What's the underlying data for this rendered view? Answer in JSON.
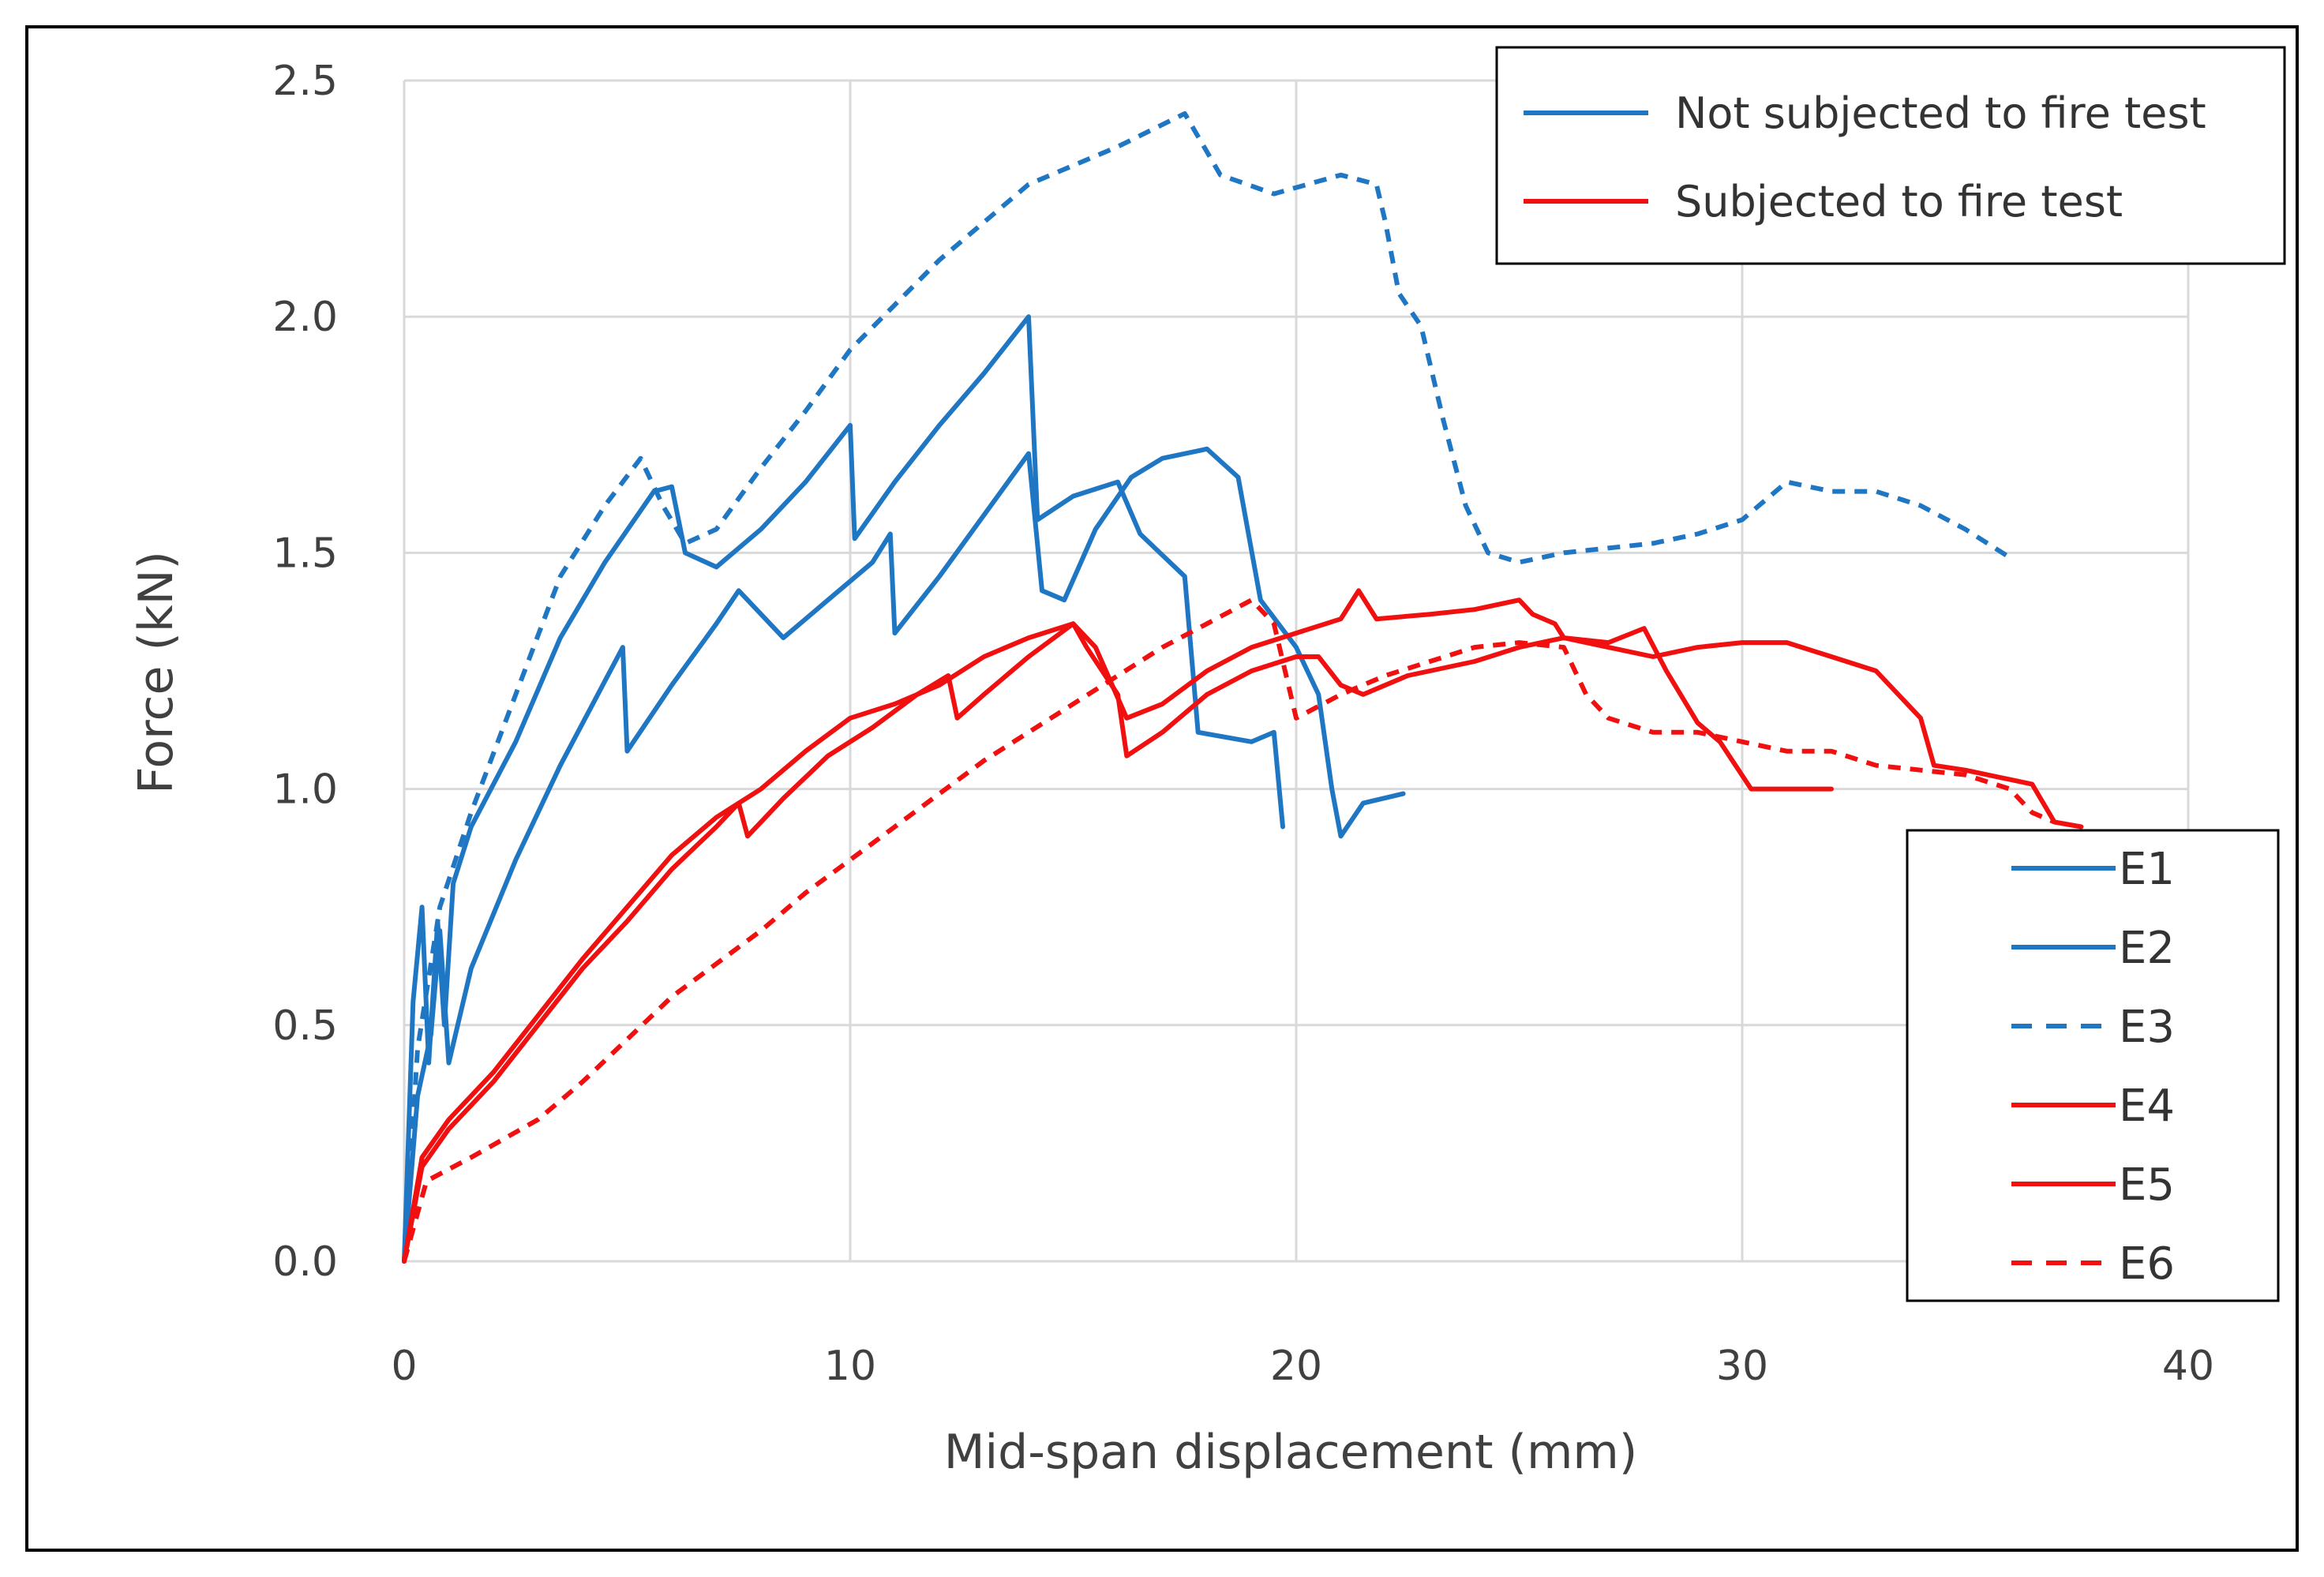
{
  "chart_data": {
    "type": "line",
    "title": "",
    "xlabel": "Mid-span displacement (mm)",
    "ylabel": "Force (kN)",
    "xlim": [
      0,
      40
    ],
    "ylim": [
      0,
      2.5
    ],
    "xticks": [
      0,
      10,
      20,
      30,
      40
    ],
    "yticks": [
      0,
      0.5,
      1.0,
      1.5,
      2.0,
      2.5
    ],
    "xtick_labels": [
      "0",
      "10",
      "20",
      "30",
      "40"
    ],
    "ytick_labels": [
      "0.0",
      "0.5",
      "1.0",
      "1.5",
      "2.0",
      "2.5"
    ],
    "grid": true,
    "colors": {
      "blue": "#1f77c4",
      "red": "#f01010"
    },
    "group_legend": [
      {
        "label": "Not subjected to fire test",
        "color": "#1f77c4",
        "dashed": false
      },
      {
        "label": "Subjected to fire test",
        "color": "#f01010",
        "dashed": false
      }
    ],
    "series": [
      {
        "name": "E1",
        "color": "#1f77c4",
        "dashed": false,
        "points": [
          [
            0,
            0
          ],
          [
            0.2,
            0.55
          ],
          [
            0.4,
            0.75
          ],
          [
            0.55,
            0.42
          ],
          [
            0.75,
            0.72
          ],
          [
            0.9,
            0.5
          ],
          [
            1.1,
            0.8
          ],
          [
            1.5,
            0.92
          ],
          [
            2.5,
            1.1
          ],
          [
            3.5,
            1.32
          ],
          [
            4.5,
            1.48
          ],
          [
            5.6,
            1.63
          ],
          [
            6,
            1.64
          ],
          [
            6.3,
            1.5
          ],
          [
            7,
            1.47
          ],
          [
            8,
            1.55
          ],
          [
            9,
            1.65
          ],
          [
            10,
            1.77
          ],
          [
            10.1,
            1.53
          ],
          [
            11,
            1.65
          ],
          [
            12,
            1.77
          ],
          [
            13,
            1.88
          ],
          [
            14,
            2.0
          ],
          [
            14.2,
            1.57
          ],
          [
            15,
            1.62
          ],
          [
            16,
            1.65
          ],
          [
            16.5,
            1.54
          ],
          [
            17.5,
            1.45
          ],
          [
            17.8,
            1.12
          ],
          [
            19,
            1.1
          ],
          [
            19.5,
            1.12
          ],
          [
            19.7,
            0.92
          ]
        ]
      },
      {
        "name": "E2",
        "color": "#1f77c4",
        "dashed": false,
        "points": [
          [
            0,
            0
          ],
          [
            0.3,
            0.35
          ],
          [
            0.6,
            0.48
          ],
          [
            0.8,
            0.7
          ],
          [
            1.0,
            0.42
          ],
          [
            1.5,
            0.62
          ],
          [
            2.5,
            0.85
          ],
          [
            3.5,
            1.05
          ],
          [
            4.9,
            1.3
          ],
          [
            5.0,
            1.08
          ],
          [
            6,
            1.22
          ],
          [
            7,
            1.35
          ],
          [
            7.5,
            1.42
          ],
          [
            8.5,
            1.32
          ],
          [
            9.5,
            1.4
          ],
          [
            10.5,
            1.48
          ],
          [
            10.9,
            1.54
          ],
          [
            11.0,
            1.33
          ],
          [
            12,
            1.45
          ],
          [
            13,
            1.58
          ],
          [
            14,
            1.71
          ],
          [
            14.3,
            1.42
          ],
          [
            14.8,
            1.4
          ],
          [
            15.5,
            1.55
          ],
          [
            16.3,
            1.66
          ],
          [
            17,
            1.7
          ],
          [
            18,
            1.72
          ],
          [
            18.7,
            1.66
          ],
          [
            19.2,
            1.4
          ],
          [
            19.6,
            1.35
          ],
          [
            20,
            1.3
          ],
          [
            20.5,
            1.2
          ],
          [
            20.8,
            1.0
          ],
          [
            21,
            0.9
          ],
          [
            21.5,
            0.97
          ],
          [
            22.4,
            0.99
          ]
        ]
      },
      {
        "name": "E3",
        "color": "#1f77c4",
        "dashed": true,
        "points": [
          [
            0,
            0
          ],
          [
            0.3,
            0.45
          ],
          [
            0.8,
            0.75
          ],
          [
            1.5,
            0.95
          ],
          [
            2.5,
            1.2
          ],
          [
            3.5,
            1.45
          ],
          [
            4.5,
            1.6
          ],
          [
            5.3,
            1.7
          ],
          [
            5.8,
            1.6
          ],
          [
            6.3,
            1.52
          ],
          [
            7,
            1.55
          ],
          [
            8,
            1.68
          ],
          [
            9,
            1.8
          ],
          [
            10,
            1.93
          ],
          [
            12,
            2.12
          ],
          [
            14,
            2.28
          ],
          [
            16,
            2.36
          ],
          [
            17.5,
            2.43
          ],
          [
            18.3,
            2.3
          ],
          [
            19.5,
            2.26
          ],
          [
            21,
            2.3
          ],
          [
            21.8,
            2.28
          ],
          [
            22,
            2.2
          ],
          [
            22.3,
            2.05
          ],
          [
            22.8,
            1.98
          ],
          [
            23.3,
            1.78
          ],
          [
            23.8,
            1.6
          ],
          [
            24.3,
            1.5
          ],
          [
            25,
            1.48
          ],
          [
            26,
            1.5
          ],
          [
            28,
            1.52
          ],
          [
            29,
            1.54
          ],
          [
            30,
            1.57
          ],
          [
            31,
            1.65
          ],
          [
            32,
            1.63
          ],
          [
            33,
            1.63
          ],
          [
            34,
            1.6
          ],
          [
            35,
            1.55
          ],
          [
            36,
            1.49
          ]
        ]
      },
      {
        "name": "E4",
        "color": "#f01010",
        "dashed": false,
        "points": [
          [
            0,
            0
          ],
          [
            0.4,
            0.2
          ],
          [
            1,
            0.28
          ],
          [
            2,
            0.38
          ],
          [
            3,
            0.5
          ],
          [
            4,
            0.62
          ],
          [
            5,
            0.72
          ],
          [
            6,
            0.83
          ],
          [
            7,
            0.92
          ],
          [
            7.5,
            0.97
          ],
          [
            7.7,
            0.9
          ],
          [
            8.5,
            0.98
          ],
          [
            9.5,
            1.07
          ],
          [
            10.5,
            1.13
          ],
          [
            11.5,
            1.2
          ],
          [
            12.2,
            1.24
          ],
          [
            12.4,
            1.15
          ],
          [
            13,
            1.2
          ],
          [
            14,
            1.28
          ],
          [
            15,
            1.35
          ],
          [
            15.3,
            1.3
          ],
          [
            16,
            1.2
          ],
          [
            16.2,
            1.07
          ],
          [
            17,
            1.12
          ],
          [
            18,
            1.2
          ],
          [
            19,
            1.25
          ],
          [
            20,
            1.28
          ],
          [
            20.5,
            1.28
          ],
          [
            21,
            1.22
          ],
          [
            21.5,
            1.2
          ],
          [
            22.5,
            1.24
          ],
          [
            24,
            1.27
          ],
          [
            25,
            1.3
          ],
          [
            26,
            1.32
          ],
          [
            27,
            1.3
          ],
          [
            28,
            1.28
          ],
          [
            29,
            1.3
          ],
          [
            30,
            1.31
          ],
          [
            31,
            1.31
          ],
          [
            32,
            1.28
          ],
          [
            33,
            1.25
          ],
          [
            34,
            1.15
          ],
          [
            34.3,
            1.05
          ],
          [
            35,
            1.04
          ],
          [
            36,
            1.02
          ],
          [
            36.5,
            1.01
          ],
          [
            37,
            0.93
          ],
          [
            37.6,
            0.92
          ]
        ]
      },
      {
        "name": "E5",
        "color": "#f01010",
        "dashed": false,
        "points": [
          [
            0,
            0
          ],
          [
            0.4,
            0.22
          ],
          [
            1,
            0.3
          ],
          [
            2,
            0.4
          ],
          [
            3,
            0.52
          ],
          [
            4,
            0.64
          ],
          [
            5,
            0.75
          ],
          [
            6,
            0.86
          ],
          [
            7,
            0.94
          ],
          [
            8,
            1.0
          ],
          [
            9,
            1.08
          ],
          [
            10,
            1.15
          ],
          [
            11,
            1.18
          ],
          [
            12,
            1.22
          ],
          [
            13,
            1.28
          ],
          [
            14,
            1.32
          ],
          [
            15,
            1.35
          ],
          [
            15.5,
            1.3
          ],
          [
            16.2,
            1.15
          ],
          [
            17,
            1.18
          ],
          [
            18,
            1.25
          ],
          [
            19,
            1.3
          ],
          [
            20,
            1.33
          ],
          [
            21,
            1.36
          ],
          [
            21.4,
            1.42
          ],
          [
            21.8,
            1.36
          ],
          [
            23,
            1.37
          ],
          [
            24,
            1.38
          ],
          [
            25,
            1.4
          ],
          [
            25.3,
            1.37
          ],
          [
            25.8,
            1.35
          ],
          [
            26,
            1.32
          ],
          [
            27,
            1.31
          ],
          [
            27.8,
            1.34
          ],
          [
            28.3,
            1.25
          ],
          [
            29,
            1.14
          ],
          [
            29.5,
            1.1
          ],
          [
            30.2,
            1.0
          ],
          [
            31,
            1.0
          ],
          [
            32,
            1.0
          ]
        ]
      },
      {
        "name": "E6",
        "color": "#f01010",
        "dashed": true,
        "points": [
          [
            0,
            0
          ],
          [
            0.5,
            0.17
          ],
          [
            1.5,
            0.22
          ],
          [
            3,
            0.3
          ],
          [
            4,
            0.38
          ],
          [
            5,
            0.47
          ],
          [
            6,
            0.56
          ],
          [
            7,
            0.63
          ],
          [
            8,
            0.7
          ],
          [
            9,
            0.78
          ],
          [
            10,
            0.85
          ],
          [
            11,
            0.92
          ],
          [
            12,
            0.99
          ],
          [
            13,
            1.06
          ],
          [
            14,
            1.12
          ],
          [
            15,
            1.18
          ],
          [
            16,
            1.24
          ],
          [
            17,
            1.3
          ],
          [
            18,
            1.35
          ],
          [
            19,
            1.4
          ],
          [
            19.5,
            1.35
          ],
          [
            20,
            1.15
          ],
          [
            21,
            1.2
          ],
          [
            22,
            1.24
          ],
          [
            23,
            1.27
          ],
          [
            24,
            1.3
          ],
          [
            25,
            1.31
          ],
          [
            26,
            1.3
          ],
          [
            26.5,
            1.2
          ],
          [
            27,
            1.15
          ],
          [
            28,
            1.12
          ],
          [
            29,
            1.12
          ],
          [
            30,
            1.1
          ],
          [
            31,
            1.08
          ],
          [
            32,
            1.08
          ],
          [
            33,
            1.05
          ],
          [
            34,
            1.04
          ],
          [
            35,
            1.03
          ],
          [
            36,
            1.0
          ],
          [
            36.5,
            0.95
          ],
          [
            37,
            0.93
          ]
        ]
      }
    ]
  }
}
